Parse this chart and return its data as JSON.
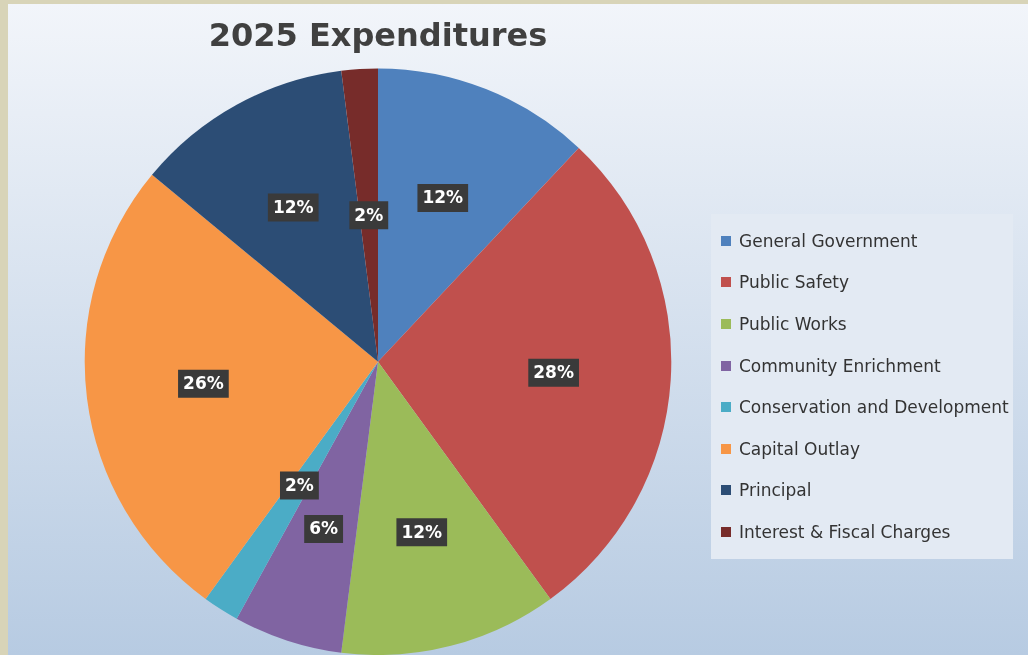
{
  "chart_data": {
    "type": "pie",
    "title": "2025 Expenditures",
    "categories": [
      "General Government",
      "Public Safety",
      "Public Works",
      "Community Enrichment",
      "Conservation and Development",
      "Capital Outlay",
      "Principal",
      "Interest & Fiscal Charges"
    ],
    "values": [
      12,
      28,
      12,
      6,
      2,
      26,
      12,
      2
    ],
    "colors": [
      "#4f81bd",
      "#c0504d",
      "#9bbb59",
      "#8064a2",
      "#4bacc6",
      "#f79646",
      "#2c4d75",
      "#772c2a"
    ],
    "value_labels": [
      "12%",
      "28%",
      "12%",
      "6%",
      "2%",
      "26%",
      "12%",
      "2%"
    ],
    "legend": "right"
  }
}
